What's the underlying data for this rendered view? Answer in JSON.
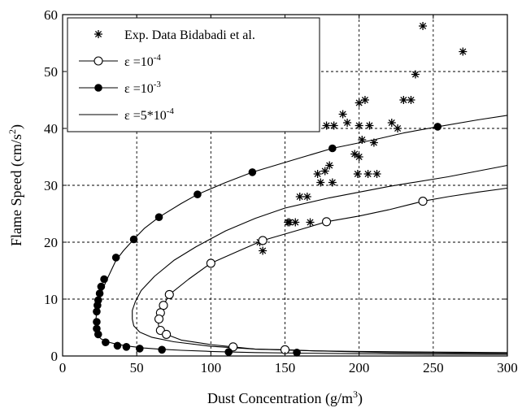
{
  "chart_data": {
    "type": "scatter",
    "title": "",
    "xlabel": "Dust Concentration (g/m",
    "xlabel_sup": "3",
    "xlabel_close": ")",
    "ylabel": "Flame Speed (cm/s",
    "ylabel_sup": "2",
    "ylabel_close": ")",
    "xlim": [
      0,
      300
    ],
    "ylim": [
      0,
      60
    ],
    "xticks": [
      0,
      50,
      100,
      150,
      200,
      250,
      300
    ],
    "yticks": [
      0,
      10,
      20,
      30,
      40,
      50,
      60
    ],
    "xtick_labels": [
      "0",
      "50",
      "100",
      "150",
      "200",
      "250",
      "300"
    ],
    "ytick_labels": [
      "0",
      "10",
      "20",
      "30",
      "40",
      "50",
      "60"
    ],
    "grid": true,
    "legend_position": "top-left",
    "legend": [
      {
        "label": "Exp. Data Bidabadi et al.",
        "marker": "star",
        "line": false
      },
      {
        "label": "ε =10",
        "sup": "-4",
        "marker": "open-circle",
        "line": true
      },
      {
        "label": "ε =10",
        "sup": "-3",
        "marker": "filled-circle",
        "line": true
      },
      {
        "label": "ε =5*10",
        "sup": "-4",
        "marker": "none",
        "line": true
      }
    ],
    "series": [
      {
        "name": "Exp. Data Bidabadi et al.",
        "style": "star",
        "x": [
          270,
          243,
          238,
          230,
          226,
          222,
          207,
          210,
          206,
          204,
          200,
          202,
          197,
          199,
          200,
          192,
          189,
          183,
          178,
          177,
          182,
          172,
          174,
          165,
          167,
          160,
          157,
          152,
          153,
          135,
          133,
          180,
          212,
          235,
          200
        ],
        "y": [
          53.5,
          58,
          49.5,
          45,
          40,
          41,
          40.5,
          37.5,
          32,
          45,
          44.5,
          38,
          35.5,
          32,
          35,
          41,
          42.5,
          40.5,
          40.5,
          32.5,
          30.5,
          32,
          30.5,
          28,
          23.5,
          28,
          23.5,
          23.5,
          23.5,
          18.5,
          20,
          33.5,
          32,
          45,
          40.5
        ]
      },
      {
        "name": "ε =10^-4",
        "style": "open-circle",
        "x": [
          300,
          280,
          260,
          243,
          220,
          200,
          178,
          160,
          135,
          120,
          100,
          85,
          72,
          68,
          66,
          65,
          64.5,
          65,
          66,
          68,
          70,
          80,
          100,
          115,
          130,
          150,
          170,
          200,
          240,
          300
        ],
        "y": [
          29.5,
          28.8,
          28,
          27.2,
          25.7,
          24.6,
          23.6,
          22.2,
          20.3,
          18.6,
          16.3,
          13.5,
          10.8,
          8.9,
          7.6,
          6.5,
          5.8,
          5.0,
          4.5,
          4.0,
          3.8,
          2.8,
          2.0,
          1.6,
          1.2,
          1.1,
          0.9,
          0.8,
          0.7,
          0.6
        ],
        "markers_x": [
          243,
          178,
          135,
          100,
          72,
          68,
          66,
          65,
          66,
          70,
          115,
          150
        ],
        "markers_y": [
          27.2,
          23.6,
          20.3,
          16.3,
          10.8,
          8.9,
          7.6,
          6.5,
          4.5,
          3.8,
          1.6,
          1.1
        ]
      },
      {
        "name": "ε =10^-3",
        "style": "filled-circle",
        "x": [
          300,
          280,
          253,
          230,
          210,
          182,
          160,
          128,
          110,
          91,
          80,
          65,
          55,
          48,
          41,
          36,
          30,
          27,
          25,
          24,
          23,
          22.5,
          22.5,
          23,
          24,
          26,
          30,
          36,
          45,
          55,
          65,
          80,
          100,
          113,
          130,
          160,
          200,
          250,
          300
        ],
        "y": [
          42.3,
          41.5,
          40.3,
          39.2,
          38.0,
          36.5,
          34.8,
          32.3,
          30.5,
          28.4,
          26.8,
          24.4,
          22.4,
          20.5,
          18.5,
          16.8,
          13.5,
          11.7,
          10.0,
          9.0,
          7.7,
          6.5,
          5.5,
          4.5,
          3.5,
          3.0,
          2.5,
          2.1,
          1.7,
          1.4,
          1.2,
          1.0,
          0.8,
          0.7,
          0.6,
          0.5,
          0.4,
          0.3,
          0.3
        ],
        "markers_x": [
          253,
          182,
          128,
          91,
          65,
          48,
          36,
          28,
          26,
          25,
          24,
          23.5,
          23,
          23,
          23,
          24,
          29,
          37,
          43,
          52,
          67,
          112,
          158
        ],
        "markers_y": [
          40.3,
          36.5,
          32.3,
          28.4,
          24.4,
          20.5,
          17.3,
          13.5,
          12.2,
          11.0,
          9.8,
          8.9,
          7.8,
          6.0,
          4.8,
          3.8,
          2.4,
          1.8,
          1.6,
          1.3,
          1.1,
          0.7,
          0.6
        ]
      },
      {
        "name": "ε =5*10^-4",
        "style": "line",
        "x": [
          300,
          260,
          220,
          180,
          150,
          130,
          110,
          90,
          75,
          62,
          53,
          49,
          47,
          47,
          48,
          52,
          60,
          75,
          100,
          130,
          170,
          220,
          300
        ],
        "y": [
          33.5,
          31.5,
          29.8,
          27.8,
          26.0,
          24.2,
          22.0,
          19.2,
          16.8,
          14.0,
          11.5,
          9.5,
          8.0,
          6.5,
          5.3,
          4.2,
          3.3,
          2.5,
          1.7,
          1.2,
          0.9,
          0.6,
          0.4
        ]
      }
    ]
  }
}
